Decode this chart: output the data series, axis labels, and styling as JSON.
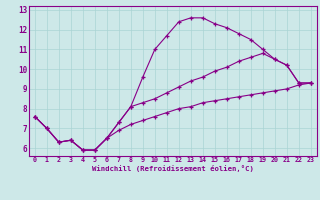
{
  "xlabel": "Windchill (Refroidissement éolien,°C)",
  "bg_color": "#cde8e8",
  "line_color": "#880088",
  "grid_color": "#aad4d4",
  "spine_color": "#880088",
  "xlim": [
    -0.5,
    23.5
  ],
  "ylim": [
    5.6,
    13.2
  ],
  "xticks": [
    0,
    1,
    2,
    3,
    4,
    5,
    6,
    7,
    8,
    9,
    10,
    11,
    12,
    13,
    14,
    15,
    16,
    17,
    18,
    19,
    20,
    21,
    22,
    23
  ],
  "yticks": [
    6,
    7,
    8,
    9,
    10,
    11,
    12,
    13
  ],
  "line1_x": [
    0,
    1,
    2,
    3,
    4,
    5,
    6,
    7,
    8,
    9,
    10,
    11,
    12,
    13,
    14,
    15,
    16,
    17,
    18,
    19,
    20,
    21,
    22,
    23
  ],
  "line1_y": [
    7.6,
    7.0,
    6.3,
    6.4,
    5.9,
    5.9,
    6.5,
    7.3,
    8.1,
    9.6,
    11.0,
    11.7,
    12.4,
    12.6,
    12.6,
    12.3,
    12.1,
    11.8,
    11.5,
    11.0,
    10.5,
    10.2,
    9.3,
    9.3
  ],
  "line2_x": [
    0,
    1,
    2,
    3,
    4,
    5,
    6,
    7,
    8,
    9,
    10,
    11,
    12,
    13,
    14,
    15,
    16,
    17,
    18,
    19,
    20,
    21,
    22,
    23
  ],
  "line2_y": [
    7.6,
    7.0,
    6.3,
    6.4,
    5.9,
    5.9,
    6.5,
    7.3,
    8.1,
    8.3,
    8.5,
    8.8,
    9.1,
    9.4,
    9.6,
    9.9,
    10.1,
    10.4,
    10.6,
    10.8,
    10.5,
    10.2,
    9.3,
    9.3
  ],
  "line3_x": [
    0,
    1,
    2,
    3,
    4,
    5,
    6,
    7,
    8,
    9,
    10,
    11,
    12,
    13,
    14,
    15,
    16,
    17,
    18,
    19,
    20,
    21,
    22,
    23
  ],
  "line3_y": [
    7.6,
    7.0,
    6.3,
    6.4,
    5.9,
    5.9,
    6.5,
    6.9,
    7.2,
    7.4,
    7.6,
    7.8,
    8.0,
    8.1,
    8.3,
    8.4,
    8.5,
    8.6,
    8.7,
    8.8,
    8.9,
    9.0,
    9.2,
    9.3
  ]
}
